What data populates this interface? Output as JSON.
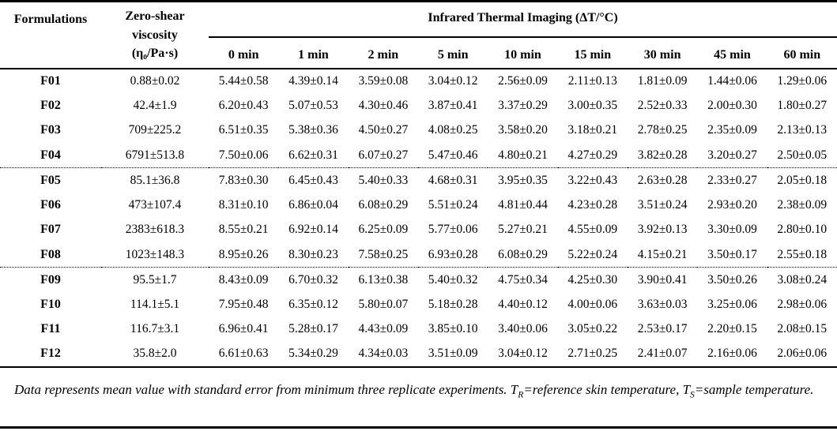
{
  "table": {
    "columns": {
      "formulations_header": "Formulations",
      "viscosity_header_lines": [
        "Zero-shear",
        "viscosity",
        "(η₀/Pa·s)"
      ],
      "span_header": "Infrared Thermal Imaging (ΔT/°C)",
      "time_headers": [
        "0 min",
        "1 min",
        "2 min",
        "5 min",
        "10 min",
        "15 min",
        "30 min",
        "45 min",
        "60 min"
      ]
    },
    "group_breaks_after": [
      "F04",
      "F08"
    ],
    "rows": [
      {
        "formulation": "F01",
        "viscosity": "0.88±0.02",
        "values": [
          "5.44±0.58",
          "4.39±0.14",
          "3.59±0.08",
          "3.04±0.12",
          "2.56±0.09",
          "2.11±0.13",
          "1.81±0.09",
          "1.44±0.06",
          "1.29±0.06"
        ]
      },
      {
        "formulation": "F02",
        "viscosity": "42.4±1.9",
        "values": [
          "6.20±0.43",
          "5.07±0.53",
          "4.30±0.46",
          "3.87±0.41",
          "3.37±0.29",
          "3.00±0.35",
          "2.52±0.33",
          "2.00±0.30",
          "1.80±0.27"
        ]
      },
      {
        "formulation": "F03",
        "viscosity": "709±225.2",
        "values": [
          "6.51±0.35",
          "5.38±0.36",
          "4.50±0.27",
          "4.08±0.25",
          "3.58±0.20",
          "3.18±0.21",
          "2.78±0.25",
          "2.35±0.09",
          "2.13±0.13"
        ]
      },
      {
        "formulation": "F04",
        "viscosity": "6791±513.8",
        "values": [
          "7.50±0.06",
          "6.62±0.31",
          "6.07±0.27",
          "5.47±0.46",
          "4.80±0.21",
          "4.27±0.29",
          "3.82±0.28",
          "3.20±0.27",
          "2.50±0.05"
        ]
      },
      {
        "formulation": "F05",
        "viscosity": "85.1±36.8",
        "values": [
          "7.83±0.30",
          "6.45±0.43",
          "5.40±0.33",
          "4.68±0.31",
          "3.95±0.35",
          "3.22±0.43",
          "2.63±0.28",
          "2.33±0.27",
          "2.05±0.18"
        ]
      },
      {
        "formulation": "F06",
        "viscosity": "473±107.4",
        "values": [
          "8.31±0.10",
          "6.86±0.04",
          "6.08±0.29",
          "5.51±0.24",
          "4.81±0.44",
          "4.23±0.28",
          "3.51±0.24",
          "2.93±0.20",
          "2.38±0.09"
        ]
      },
      {
        "formulation": "F07",
        "viscosity": "2383±618.3",
        "values": [
          "8.55±0.21",
          "6.92±0.14",
          "6.25±0.09",
          "5.77±0.06",
          "5.27±0.21",
          "4.55±0.09",
          "3.92±0.13",
          "3.30±0.09",
          "2.80±0.10"
        ]
      },
      {
        "formulation": "F08",
        "viscosity": "1023±148.3",
        "values": [
          "8.95±0.26",
          "8.30±0.23",
          "7.58±0.25",
          "6.93±0.28",
          "6.08±0.29",
          "5.22±0.24",
          "4.15±0.21",
          "3.50±0.17",
          "2.55±0.18"
        ]
      },
      {
        "formulation": "F09",
        "viscosity": "95.5±1.7",
        "values": [
          "8.43±0.09",
          "6.70±0.32",
          "6.13±0.38",
          "5.40±0.32",
          "4.75±0.34",
          "4.25±0.30",
          "3.90±0.41",
          "3.50±0.26",
          "3.08±0.24"
        ]
      },
      {
        "formulation": "F10",
        "viscosity": "114.1±5.1",
        "values": [
          "7.95±0.48",
          "6.35±0.12",
          "5.80±0.07",
          "5.18±0.28",
          "4.40±0.12",
          "4.00±0.06",
          "3.63±0.03",
          "3.25±0.06",
          "2.98±0.06"
        ]
      },
      {
        "formulation": "F11",
        "viscosity": "116.7±3.1",
        "values": [
          "6.96±0.41",
          "5.28±0.17",
          "4.43±0.09",
          "3.85±0.10",
          "3.40±0.06",
          "3.05±0.22",
          "2.53±0.17",
          "2.20±0.15",
          "2.08±0.15"
        ]
      },
      {
        "formulation": "F12",
        "viscosity": "35.8±2.0",
        "values": [
          "6.61±0.63",
          "5.34±0.29",
          "4.34±0.03",
          "3.51±0.09",
          "3.04±0.12",
          "2.71±0.25",
          "2.41±0.07",
          "2.16±0.06",
          "2.06±0.06"
        ]
      }
    ]
  },
  "footnote": {
    "segments": [
      {
        "text": "Data represents mean value with standard error from minimum three replicate experiments. T",
        "sub": false
      },
      {
        "text": "R",
        "sub": true
      },
      {
        "text": "=reference skin temperature, T",
        "sub": false
      },
      {
        "text": "S",
        "sub": true
      },
      {
        "text": "=sample temperature.",
        "sub": false
      }
    ]
  },
  "colors": {
    "text": "#000000",
    "background": "#ffffff",
    "rule": "#000000"
  }
}
